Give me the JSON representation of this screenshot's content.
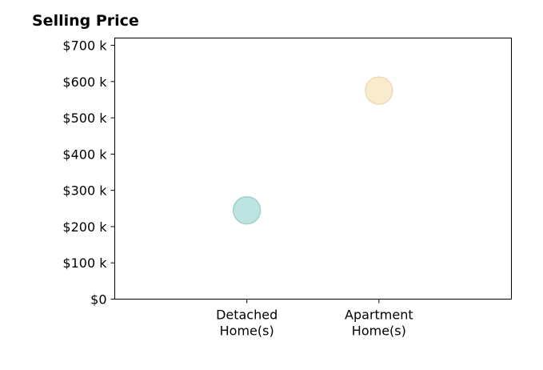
{
  "chart_data": {
    "type": "scatter",
    "title": "Selling Price",
    "xlabel": "",
    "ylabel": "",
    "categories": [
      [
        "Detached",
        "Home(s)"
      ],
      [
        "Apartment",
        "Home(s)"
      ]
    ],
    "values": [
      245000,
      575000
    ],
    "point_colors": [
      "#b2dfdb",
      "#f7e7c6"
    ],
    "point_stroke_colors": [
      "#9fd2cc",
      "#eedbb4"
    ],
    "ylim": [
      0,
      720000
    ],
    "y_ticks": [
      0,
      100000,
      200000,
      300000,
      400000,
      500000,
      600000,
      700000
    ],
    "y_tick_labels": [
      "$0",
      "$100 k",
      "$200 k",
      "$300 k",
      "$400 k",
      "$500 k",
      "$600 k",
      "$700 k"
    ],
    "grid": false,
    "legend": "none"
  }
}
